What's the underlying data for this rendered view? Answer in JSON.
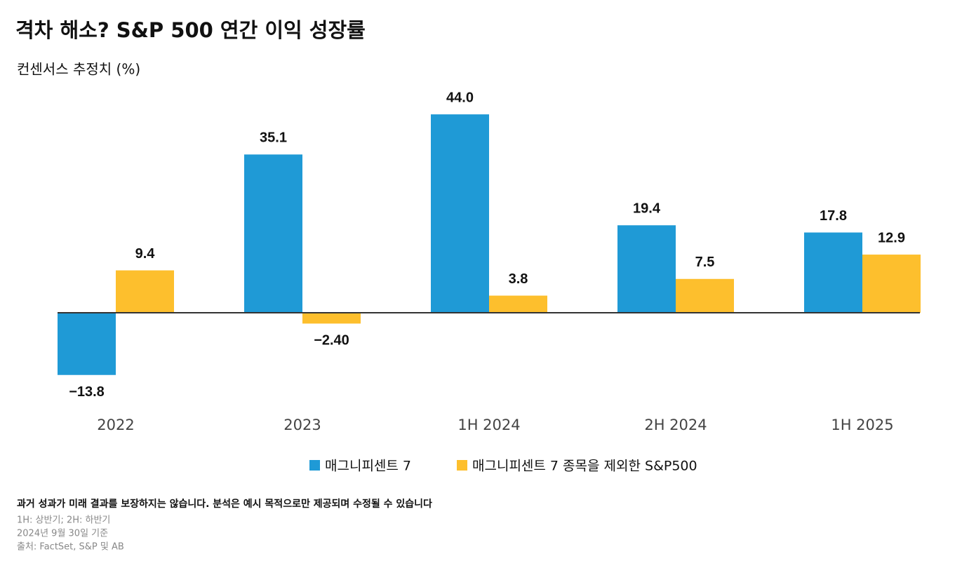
{
  "chart_data": {
    "type": "bar",
    "title": "격차 해소? S&P 500 연간 이익 성장률",
    "subtitle": "컨센서스 추정치 (%)",
    "categories": [
      "2022",
      "2023",
      "1H 2024",
      "2H 2024",
      "1H 2025"
    ],
    "series": [
      {
        "name": "매그니피센트 7",
        "color": "#1f9ad6",
        "values": [
          -13.8,
          35.1,
          44.0,
          19.4,
          17.8
        ],
        "value_labels": [
          "−13.8",
          "35.1",
          "44.0",
          "19.4",
          "17.8"
        ]
      },
      {
        "name": "매그니피센트 7 종목을 제외한 S&P500",
        "color": "#fdbf2d",
        "values": [
          9.4,
          -2.4,
          3.8,
          7.5,
          12.9
        ],
        "value_labels": [
          "9.4",
          "−2.40",
          "3.8",
          "7.5",
          "12.9"
        ]
      }
    ],
    "legend": "bottom",
    "notes": [
      "과거 성과가 미래 결과를 보장하지는 않습니다. 분석은 예시 목적으로만 제공되며 수정될 수 있습니다",
      "1H: 상반기; 2H: 하반기",
      "2024년 9월 30일 기준",
      "출처: FactSet, S&P 및 AB"
    ]
  }
}
